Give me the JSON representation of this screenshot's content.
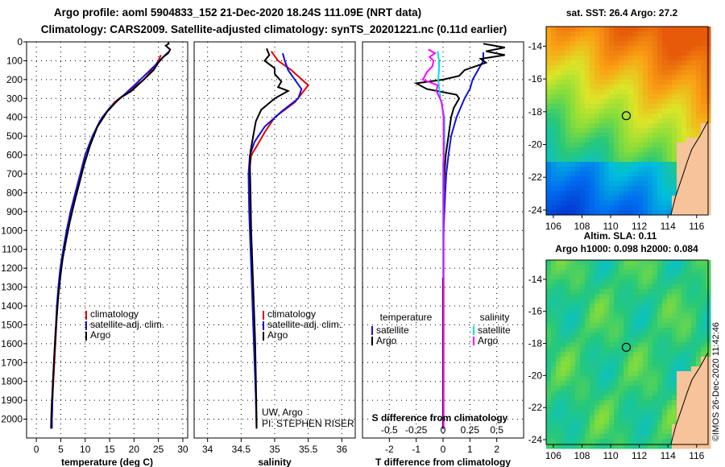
{
  "title": {
    "line1": "Argo profile: aoml 5904833_152 21-Dec-2020 18.24S 111.09E (NRT data)",
    "line2": "Climatology: CARS2009. Satellite-adjusted climatology: synTS_20201221.nc (0.11d earlier)"
  },
  "colors": {
    "red": "#e00000",
    "blue": "#1010e0",
    "black": "#000000",
    "cyan": "#00e0e0",
    "magenta": "#ff00ff"
  },
  "chart_data": [
    {
      "type": "line",
      "id": "temperature",
      "xlabel": "temperature (deg C)",
      "ylabel": "depth",
      "xlim": [
        -2,
        31
      ],
      "ylim": [
        0,
        2100
      ],
      "xticks": [
        0,
        5,
        10,
        15,
        20,
        25,
        30
      ],
      "yticks": [
        0,
        100,
        200,
        300,
        400,
        500,
        600,
        700,
        800,
        900,
        1000,
        1100,
        1200,
        1300,
        1400,
        1500,
        1600,
        1700,
        1800,
        1900,
        2000
      ],
      "legend": [
        "climatology",
        "satellite-adj. clim.",
        "Argo"
      ],
      "series": [
        {
          "name": "climatology",
          "color": "red",
          "points": [
            [
              25.5,
              70
            ],
            [
              25,
              100
            ],
            [
              24,
              140
            ],
            [
              22,
              200
            ],
            [
              19,
              260
            ],
            [
              16,
              320
            ],
            [
              13.5,
              400
            ],
            [
              11.5,
              500
            ],
            [
              10,
              600
            ],
            [
              9,
              700
            ],
            [
              8,
              800
            ],
            [
              7,
              900
            ],
            [
              6.3,
              1000
            ],
            [
              5.6,
              1100
            ],
            [
              5,
              1200
            ],
            [
              4.6,
              1300
            ],
            [
              4.3,
              1400
            ],
            [
              4.1,
              1500
            ],
            [
              3.9,
              1600
            ],
            [
              3.7,
              1700
            ],
            [
              3.5,
              1800
            ],
            [
              3.3,
              1900
            ],
            [
              3.2,
              2000
            ],
            [
              3.2,
              2050
            ]
          ]
        },
        {
          "name": "satellite-adj. clim.",
          "color": "blue",
          "points": [
            [
              27,
              55
            ],
            [
              26,
              80
            ],
            [
              24.5,
              120
            ],
            [
              22.5,
              170
            ],
            [
              20.5,
              220
            ],
            [
              18,
              280
            ],
            [
              15,
              350
            ],
            [
              13,
              420
            ],
            [
              11.5,
              500
            ],
            [
              10,
              600
            ],
            [
              9,
              700
            ],
            [
              8,
              800
            ],
            [
              7,
              900
            ],
            [
              6.2,
              1000
            ],
            [
              5.5,
              1100
            ],
            [
              4.9,
              1200
            ],
            [
              4.5,
              1300
            ],
            [
              4.2,
              1400
            ],
            [
              4,
              1500
            ],
            [
              3.8,
              1600
            ],
            [
              3.6,
              1700
            ],
            [
              3.4,
              1800
            ],
            [
              3.3,
              1900
            ],
            [
              3.2,
              2000
            ],
            [
              3.2,
              2050
            ]
          ]
        },
        {
          "name": "Argo",
          "color": "black",
          "points": [
            [
              27,
              2
            ],
            [
              27.1,
              10
            ],
            [
              26.5,
              20
            ],
            [
              27.4,
              40
            ],
            [
              27,
              60
            ],
            [
              26,
              80
            ],
            [
              25,
              110
            ],
            [
              24,
              150
            ],
            [
              22,
              200
            ],
            [
              19.5,
              260
            ],
            [
              17,
              300
            ],
            [
              14.5,
              370
            ],
            [
              12.5,
              450
            ],
            [
              11,
              550
            ],
            [
              9.8,
              650
            ],
            [
              8.8,
              750
            ],
            [
              7.8,
              850
            ],
            [
              6.9,
              950
            ],
            [
              6.1,
              1050
            ],
            [
              5.4,
              1150
            ],
            [
              4.9,
              1250
            ],
            [
              4.5,
              1350
            ],
            [
              4.2,
              1450
            ],
            [
              3.9,
              1550
            ],
            [
              3.7,
              1650
            ],
            [
              3.5,
              1750
            ],
            [
              3.3,
              1850
            ],
            [
              3.1,
              1950
            ],
            [
              3,
              2050
            ]
          ]
        }
      ]
    },
    {
      "type": "line",
      "id": "salinity",
      "xlabel": "salinity",
      "xlim": [
        33.8,
        36.2
      ],
      "ylim": [
        0,
        2100
      ],
      "xticks": [
        34,
        34.5,
        35,
        35.5,
        36
      ],
      "legend": [
        "climatology",
        "satellite-adj. clim.",
        "Argo"
      ],
      "annotation": [
        "UW, Argo",
        "PI: STEPHEN RISER"
      ],
      "series": [
        {
          "name": "climatology",
          "color": "red",
          "points": [
            [
              34.95,
              50
            ],
            [
              35.05,
              100
            ],
            [
              35.25,
              150
            ],
            [
              35.5,
              230
            ],
            [
              35.3,
              320
            ],
            [
              35.0,
              400
            ],
            [
              34.85,
              480
            ],
            [
              34.72,
              560
            ],
            [
              34.65,
              600
            ],
            [
              34.62,
              700
            ],
            [
              34.63,
              900
            ],
            [
              34.65,
              1100
            ],
            [
              34.67,
              1300
            ],
            [
              34.69,
              1500
            ],
            [
              34.71,
              1700
            ],
            [
              34.72,
              1900
            ],
            [
              34.73,
              2050
            ]
          ]
        },
        {
          "name": "satellite-adj. clim.",
          "color": "blue",
          "points": [
            [
              35.12,
              60
            ],
            [
              35.15,
              100
            ],
            [
              35.2,
              150
            ],
            [
              35.3,
              200
            ],
            [
              35.4,
              250
            ],
            [
              35.35,
              300
            ],
            [
              35.1,
              370
            ],
            [
              34.85,
              450
            ],
            [
              34.7,
              530
            ],
            [
              34.63,
              600
            ],
            [
              34.61,
              700
            ],
            [
              34.62,
              900
            ],
            [
              34.64,
              1100
            ],
            [
              34.66,
              1300
            ],
            [
              34.68,
              1500
            ],
            [
              34.7,
              1700
            ],
            [
              34.72,
              1900
            ],
            [
              34.73,
              2050
            ]
          ]
        },
        {
          "name": "Argo",
          "color": "black",
          "points": [
            [
              34.88,
              35
            ],
            [
              34.92,
              70
            ],
            [
              34.85,
              100
            ],
            [
              35.0,
              140
            ],
            [
              35.0,
              170
            ],
            [
              35.1,
              210
            ],
            [
              35.05,
              240
            ],
            [
              35.2,
              260
            ],
            [
              35.0,
              300
            ],
            [
              34.8,
              360
            ],
            [
              34.72,
              420
            ],
            [
              34.68,
              500
            ],
            [
              34.64,
              580
            ],
            [
              34.63,
              650
            ],
            [
              34.64,
              800
            ],
            [
              34.65,
              1000
            ],
            [
              34.67,
              1200
            ],
            [
              34.69,
              1400
            ],
            [
              34.71,
              1600
            ],
            [
              34.72,
              1800
            ],
            [
              34.73,
              2000
            ],
            [
              34.73,
              2050
            ]
          ]
        }
      ]
    },
    {
      "type": "line",
      "id": "difference",
      "xlabel": "T difference from climatology",
      "xlim": [
        -3,
        3
      ],
      "ylim": [
        0,
        2100
      ],
      "xticks": [
        -2,
        -1,
        0,
        1,
        2
      ],
      "sticks": [
        -0.5,
        -0.25,
        0,
        0.25,
        0.5
      ],
      "s_label": "S difference from climatology",
      "legend_temperature": [
        "temperature",
        "satellite",
        "Argo"
      ],
      "legend_salinity": [
        "salinity",
        "satellite",
        "Argo"
      ],
      "series": [
        {
          "name": "temperature satellite",
          "color": "blue",
          "points": [
            [
              1.5,
              55
            ],
            [
              1.5,
              100
            ],
            [
              1.1,
              200
            ],
            [
              1.0,
              250
            ],
            [
              0.8,
              300
            ],
            [
              0.5,
              400
            ],
            [
              0.3,
              500
            ],
            [
              0.2,
              600
            ],
            [
              0.12,
              700
            ],
            [
              0.08,
              800
            ],
            [
              0.05,
              900
            ],
            [
              0.02,
              1000
            ],
            [
              0.0,
              1200
            ],
            [
              0.0,
              1400
            ],
            [
              0.0,
              2050
            ]
          ]
        },
        {
          "name": "temperature Argo",
          "color": "black",
          "points": [
            [
              1.5,
              10
            ],
            [
              2.3,
              30
            ],
            [
              1.6,
              50
            ],
            [
              2.3,
              70
            ],
            [
              1.4,
              90
            ],
            [
              1.6,
              110
            ],
            [
              0.8,
              150
            ],
            [
              0.6,
              180
            ],
            [
              0,
              200
            ],
            [
              -1.0,
              220
            ],
            [
              -0.6,
              250
            ],
            [
              0.5,
              280
            ],
            [
              0.6,
              300
            ],
            [
              0.4,
              350
            ],
            [
              0.3,
              400
            ],
            [
              0.2,
              500
            ],
            [
              0.1,
              600
            ],
            [
              0.05,
              700
            ],
            [
              0.02,
              800
            ],
            [
              0.0,
              900
            ],
            [
              0.0,
              1200
            ],
            [
              0.0,
              1500
            ],
            [
              0.0,
              2050
            ]
          ]
        },
        {
          "name": "salinity satellite",
          "color": "cyan",
          "points": [
            [
              -0.2,
              50
            ],
            [
              -0.15,
              100
            ],
            [
              -0.15,
              150
            ],
            [
              -0.18,
              200
            ],
            [
              -0.1,
              300
            ],
            [
              0.05,
              400
            ],
            [
              0.05,
              500
            ],
            [
              0.05,
              550
            ],
            [
              0.0,
              650
            ],
            [
              0.0,
              800
            ],
            [
              0.0,
              1000
            ],
            [
              0.0,
              1250
            ]
          ]
        },
        {
          "name": "salinity Argo",
          "color": "magenta",
          "points": [
            [
              -0.55,
              40
            ],
            [
              -0.3,
              60
            ],
            [
              -0.5,
              80
            ],
            [
              -0.35,
              100
            ],
            [
              -0.4,
              130
            ],
            [
              -0.6,
              160
            ],
            [
              -0.75,
              200
            ],
            [
              -0.2,
              230
            ],
            [
              -0.25,
              260
            ],
            [
              -0.05,
              320
            ],
            [
              0.02,
              400
            ],
            [
              0.02,
              500
            ],
            [
              0.02,
              600
            ],
            [
              0.02,
              700
            ],
            [
              0.02,
              900
            ],
            [
              0.02,
              1100
            ],
            [
              0.02,
              1300
            ],
            [
              0.02,
              1500
            ],
            [
              0.02,
              1700
            ],
            [
              0.02,
              1900
            ],
            [
              0.02,
              2050
            ]
          ]
        }
      ]
    },
    {
      "type": "heatmap",
      "id": "sst-map",
      "title": "sat. SST: 26.4 Argo: 27.2",
      "xlim": [
        105.5,
        116.8
      ],
      "ylim": [
        -24.3,
        -12.8
      ],
      "xticks": [
        106,
        108,
        110,
        112,
        114,
        116
      ],
      "yticks": [
        -14,
        -16,
        -18,
        -20,
        -22,
        -24
      ],
      "marker": [
        111.09,
        -18.24
      ]
    },
    {
      "type": "heatmap",
      "id": "sla-map",
      "title": "Altim. SLA: 0.11",
      "subtitle": "Argo h1000: 0.098 h2000: 0.084",
      "xlim": [
        105.5,
        116.8
      ],
      "ylim": [
        -24.3,
        -12.8
      ],
      "xticks": [
        106,
        108,
        110,
        112,
        114,
        116
      ],
      "yticks": [
        -14,
        -16,
        -18,
        -20,
        -22,
        -24
      ],
      "marker": [
        111.09,
        -18.24
      ]
    }
  ],
  "watermark": "©IMOS 26-Dec-2020 11:42:46"
}
